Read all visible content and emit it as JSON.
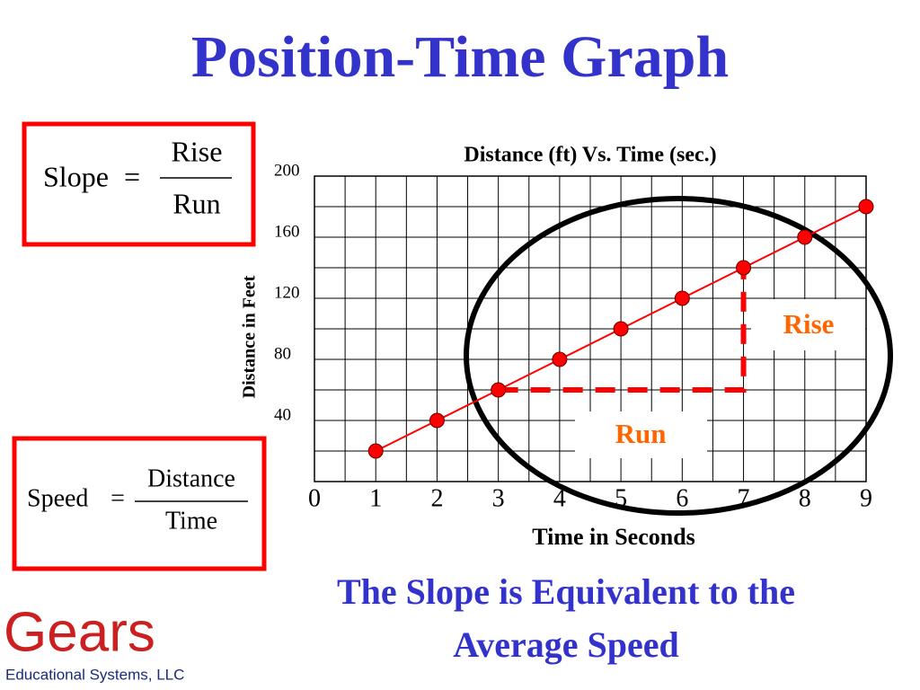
{
  "title": "Position-Time Graph",
  "formulas": [
    {
      "left": "Slope",
      "equals": "=",
      "numerator": "Rise",
      "denominator": "Run"
    },
    {
      "left": "Speed",
      "equals": "=",
      "numerator": "Distance",
      "denominator": "Time"
    }
  ],
  "chart_data": {
    "type": "line",
    "title": "Distance (ft) Vs. Time (sec.)",
    "x_label": "Time in Seconds",
    "y_label": "Distance in Feet",
    "x": [
      1,
      2,
      3,
      4,
      5,
      6,
      7,
      8,
      9
    ],
    "values": [
      20,
      40,
      60,
      80,
      100,
      120,
      140,
      160,
      180
    ],
    "color": "#ff0000",
    "xlim": [
      0,
      9
    ],
    "xticks": [
      0,
      1,
      2,
      3,
      4,
      5,
      6,
      7,
      8,
      9
    ],
    "ylim": [
      0,
      200
    ],
    "yticks": [
      40,
      80,
      120,
      160,
      200
    ],
    "grid": true,
    "annotations": {
      "rise": "Rise",
      "run": "Run"
    }
  },
  "caption": [
    "The Slope is Equivalent to the",
    "Average Speed"
  ],
  "logo": {
    "name": "Gears",
    "subtitle": "Educational Systems, LLC"
  }
}
